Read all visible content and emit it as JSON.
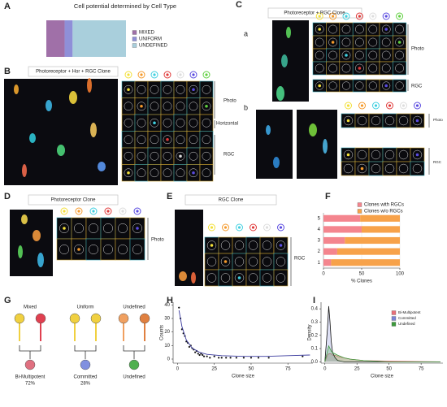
{
  "panel_labels": [
    "A",
    "B",
    "C",
    "D",
    "E",
    "F",
    "G",
    "H",
    "I"
  ],
  "panels": {
    "B": {
      "title": "Photoreceptor + Hor + RGC Clone",
      "rows": [
        "Photo",
        "Horizontal",
        "RGC"
      ]
    },
    "C": {
      "title": "Photoreceptor + RGC Clone",
      "sub": [
        "a",
        "b"
      ],
      "a_rows": [
        "Photo",
        "RGC"
      ],
      "b_rows": [
        "Photo",
        "RGC"
      ]
    },
    "D": {
      "title": "Photoreceptor Clone",
      "rows": [
        "Photo"
      ]
    },
    "E": {
      "title": "RGC Clone",
      "rows": [
        "RGC"
      ]
    },
    "G": {
      "groups": [
        "Mixed",
        "Uniform",
        "Undefined"
      ],
      "outcomes": [
        "Bi-Multipotent",
        "Committed",
        "Undefined"
      ],
      "percents": [
        "72%",
        "28%"
      ]
    }
  },
  "chart_data": [
    {
      "type": "hbar",
      "title": "Cell potential determined by Cell Type",
      "categories": [
        null
      ],
      "xlim": [
        0,
        100
      ],
      "series": [
        {
          "name": "MIXED",
          "color": "#a070a8",
          "values": [
            23
          ]
        },
        {
          "name": "UNIFORM",
          "color": "#8f8fd8",
          "values": [
            10
          ]
        },
        {
          "name": "UNDEFINED",
          "color": "#a9cfdc",
          "values": [
            67
          ]
        }
      ]
    },
    {
      "type": "hbar",
      "categories": [
        "1",
        "2",
        "3",
        "4",
        "5"
      ],
      "xlim": [
        0,
        100
      ],
      "xticks": [
        0,
        50,
        100
      ],
      "x_label": "% Clones",
      "series": [
        {
          "name": "Clones with RGCs",
          "color": "#f4858e",
          "values": [
            10,
            18,
            28,
            50,
            48
          ]
        },
        {
          "name": "Clones w/o RGCs",
          "color": "#f7a24a",
          "values": [
            90,
            82,
            72,
            50,
            52
          ]
        }
      ]
    },
    {
      "type": "scatter",
      "x_label": "Clone size",
      "y_label": "Counts",
      "xlim": [
        -3,
        92
      ],
      "ylim": [
        -3,
        42
      ],
      "xticks": [
        0,
        25,
        50,
        75
      ],
      "yticks": [
        0,
        10,
        20,
        30,
        40
      ],
      "color": "#111111",
      "fit_color": "#3b3b9e",
      "x": [
        1,
        2,
        3,
        4,
        5,
        6,
        7,
        8,
        9,
        10,
        11,
        12,
        13,
        14,
        15,
        16,
        17,
        18,
        20,
        22,
        25,
        28,
        30,
        33,
        36,
        40,
        45,
        50,
        55,
        62,
        85
      ],
      "values": [
        38,
        30,
        22,
        19,
        17,
        13,
        12,
        9,
        10,
        8,
        7,
        5,
        6,
        4,
        3,
        4,
        3,
        2,
        2,
        1,
        2,
        1,
        1,
        1,
        1,
        1,
        1,
        1,
        1,
        1,
        2
      ],
      "fit_x": [
        1,
        3,
        6,
        10,
        15,
        20,
        30,
        45,
        60,
        75,
        90
      ],
      "fit_values": [
        36,
        24,
        14,
        8,
        5,
        3.5,
        2.5,
        2,
        2,
        2.5,
        3
      ]
    },
    {
      "type": "line",
      "x_label": "Clone size",
      "y_label": "Density",
      "xlim": [
        -3,
        92
      ],
      "ylim": [
        -0.01,
        0.45
      ],
      "xticks": [
        0,
        25,
        50,
        75
      ],
      "yticks": [
        {
          "value": 0,
          "label": "0.0"
        },
        {
          "value": 0.1,
          "label": "0.1"
        },
        {
          "value": 0.2,
          "label": "0.2"
        },
        {
          "value": 0.3,
          "label": "0.3"
        },
        {
          "value": 0.4,
          "label": "0.4"
        }
      ],
      "x": [
        0,
        2,
        3,
        4,
        5,
        6,
        8,
        10,
        15,
        20,
        30,
        50,
        90
      ],
      "series": [
        {
          "name": "Bi-Multipotent",
          "color": "#e8707a",
          "values": [
            0,
            0.05,
            0.06,
            0.06,
            0.06,
            0.05,
            0.05,
            0.04,
            0.03,
            0.02,
            0.01,
            0.005,
            0
          ]
        },
        {
          "name": "Committed",
          "color": "#7b83d6",
          "values": [
            0,
            0.25,
            0.42,
            0.3,
            0.15,
            0.07,
            0.03,
            0.01,
            0,
            0,
            0,
            0,
            0
          ]
        },
        {
          "name": "Undefined",
          "color": "#3c9a3c",
          "values": [
            0,
            0.08,
            0.12,
            0.1,
            0.08,
            0.07,
            0.06,
            0.05,
            0.03,
            0.02,
            0.01,
            0,
            0
          ]
        }
      ]
    }
  ]
}
